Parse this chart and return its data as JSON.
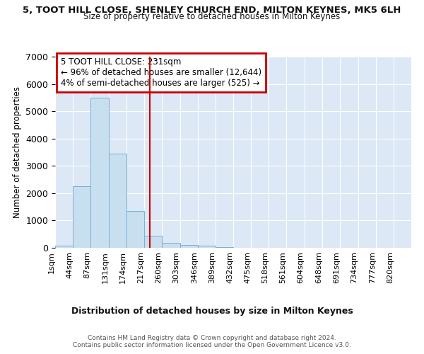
{
  "title1": "5, TOOT HILL CLOSE, SHENLEY CHURCH END, MILTON KEYNES, MK5 6LH",
  "title2": "Size of property relative to detached houses in Milton Keynes",
  "xlabel": "Distribution of detached houses by size in Milton Keynes",
  "ylabel": "Number of detached properties",
  "annotation_line1": "5 TOOT HILL CLOSE: 231sqm",
  "annotation_line2": "← 96% of detached houses are smaller (12,644)",
  "annotation_line3": "4% of semi-detached houses are larger (525) →",
  "bin_edges": [
    1,
    44,
    87,
    131,
    174,
    217,
    260,
    303,
    346,
    389,
    432,
    475,
    518,
    561,
    604,
    648,
    691,
    734,
    777,
    820,
    863
  ],
  "bar_heights": [
    70,
    2250,
    5500,
    3450,
    1350,
    450,
    175,
    100,
    75,
    30,
    0,
    0,
    0,
    0,
    0,
    0,
    0,
    0,
    0,
    0
  ],
  "bar_color": "#c8dff0",
  "bar_edge_color": "#7aafd4",
  "vline_x": 231,
  "vline_color": "#cc0000",
  "annotation_box_color": "#cc0000",
  "ylim": [
    0,
    7000
  ],
  "yticks": [
    0,
    1000,
    2000,
    3000,
    4000,
    5000,
    6000,
    7000
  ],
  "bg_color": "#ffffff",
  "plot_bg_color": "#dce8f5",
  "grid_color": "#ffffff",
  "footer_line1": "Contains HM Land Registry data © Crown copyright and database right 2024.",
  "footer_line2": "Contains public sector information licensed under the Open Government Licence v3.0."
}
